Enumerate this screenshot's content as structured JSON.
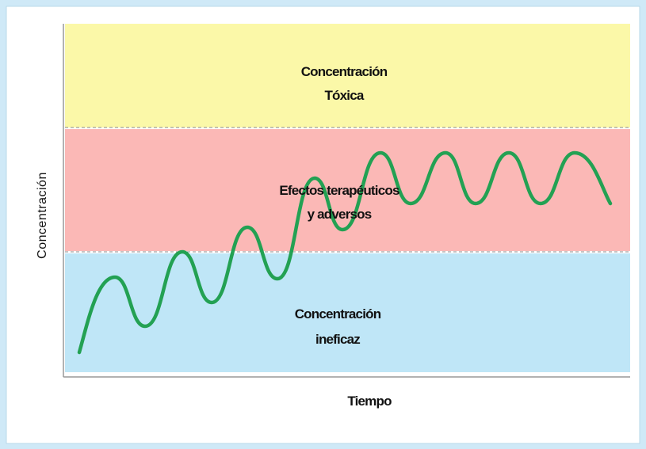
{
  "zones": [
    {
      "lines": [
        "Concentración",
        "Tóxica"
      ]
    },
    {
      "lines": [
        "Efectos terapéuticos",
        "y adversos"
      ]
    },
    {
      "lines": [
        "Concentración",
        "ineficaz"
      ]
    }
  ],
  "axes": {
    "x_label": "Tiempo",
    "y_label": "Concentración"
  }
}
